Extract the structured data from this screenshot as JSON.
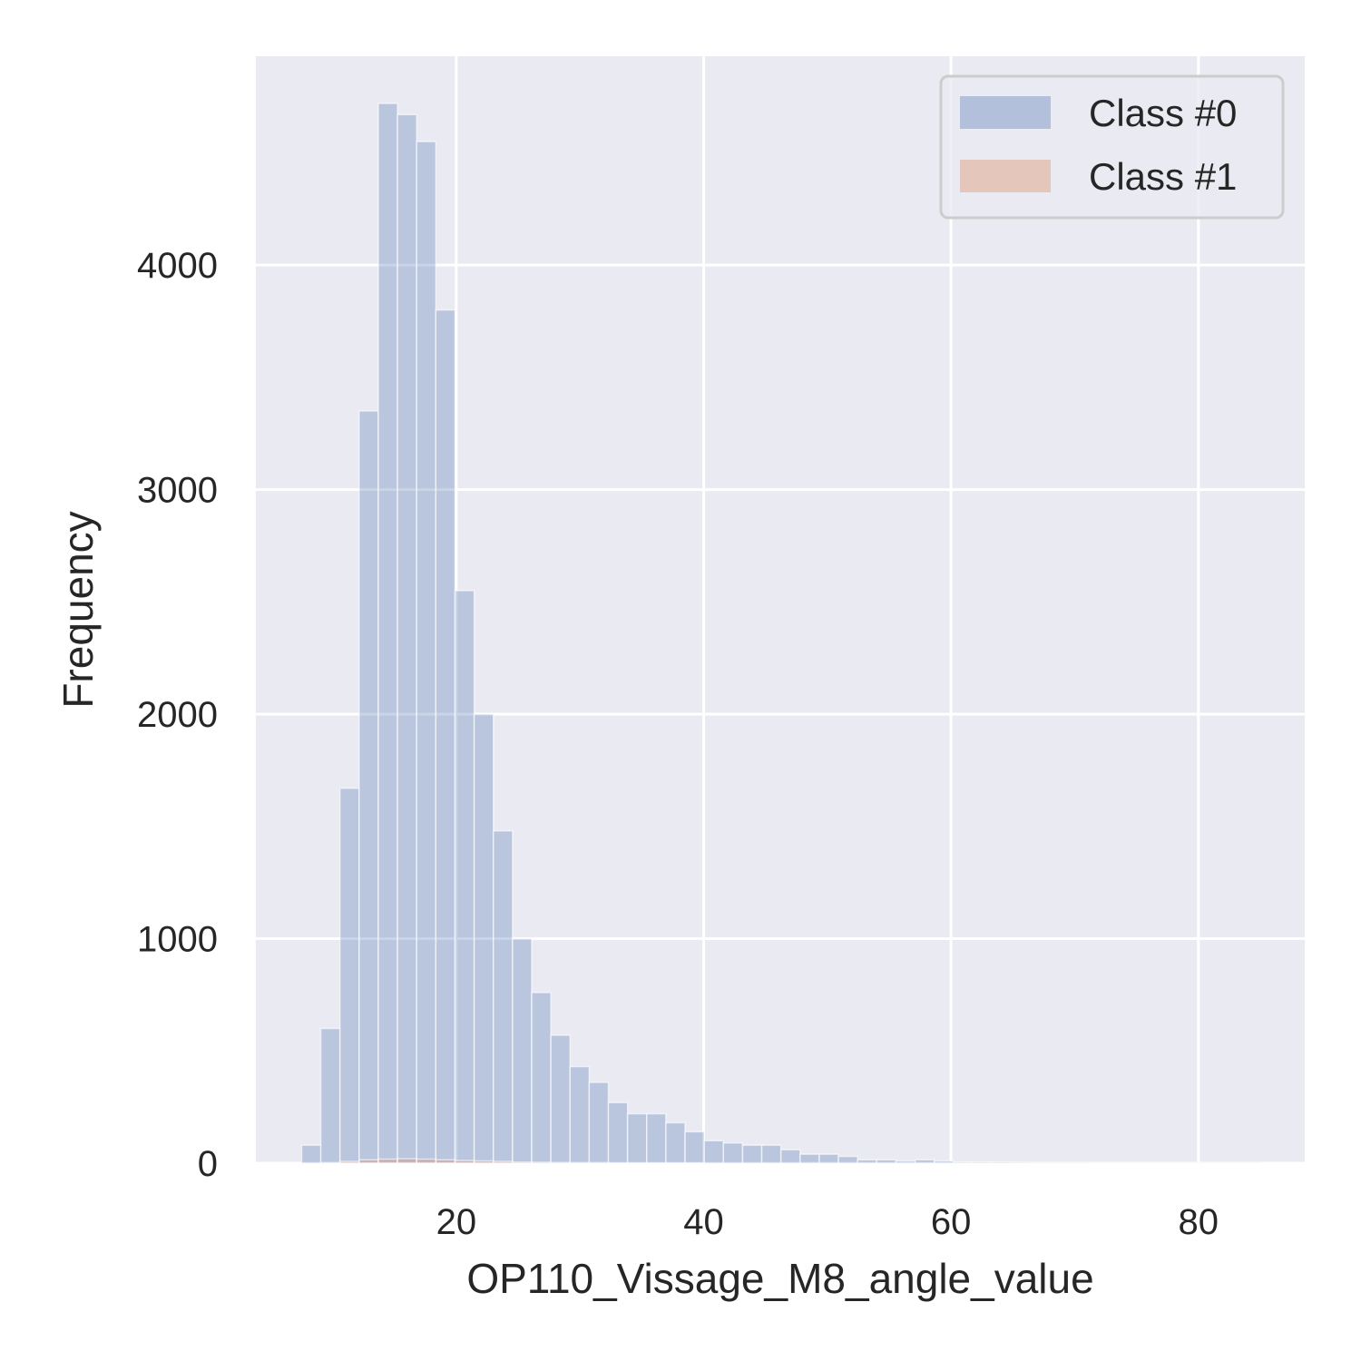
{
  "chart_data": {
    "type": "bar",
    "title": "",
    "xlabel": "OP110_Vissage_M8_angle_value",
    "ylabel": "Frequency",
    "xlim": [
      3.8,
      88.6
    ],
    "ylim": [
      0,
      4930
    ],
    "xticks": [
      20,
      40,
      60,
      80
    ],
    "yticks": [
      0,
      1000,
      2000,
      3000,
      4000
    ],
    "grid": true,
    "legend_position": "top-right",
    "bins": {
      "start": 7.5,
      "width": 1.55,
      "count": 50
    },
    "series": [
      {
        "name": "Class #0",
        "color": "#4c72b0",
        "opacity": 0.3,
        "counts": [
          80,
          600,
          1670,
          3350,
          4720,
          4670,
          4550,
          3800,
          2550,
          2000,
          1480,
          1000,
          760,
          570,
          430,
          360,
          270,
          220,
          220,
          180,
          140,
          100,
          90,
          80,
          80,
          60,
          40,
          40,
          30,
          15,
          15,
          10,
          15,
          10,
          5,
          5,
          5,
          3,
          2,
          2,
          2,
          1,
          1,
          1,
          1,
          1,
          1,
          1,
          1,
          1
        ]
      },
      {
        "name": "Class #1",
        "color": "#dd8452",
        "opacity": 0.3,
        "counts": [
          0,
          2,
          8,
          15,
          18,
          20,
          18,
          15,
          12,
          10,
          8,
          5,
          4,
          3,
          2,
          2,
          1,
          1,
          1,
          1,
          1,
          0,
          0,
          0,
          0,
          0,
          0,
          0,
          0,
          0,
          0,
          0,
          0,
          0,
          0,
          0,
          0,
          0,
          0,
          0,
          0,
          0,
          0,
          0,
          0,
          0,
          0,
          0,
          0,
          0
        ]
      }
    ]
  },
  "colors": {
    "plot_background": "#eaeaf2",
    "grid": "#ffffff",
    "text": "#262626"
  }
}
